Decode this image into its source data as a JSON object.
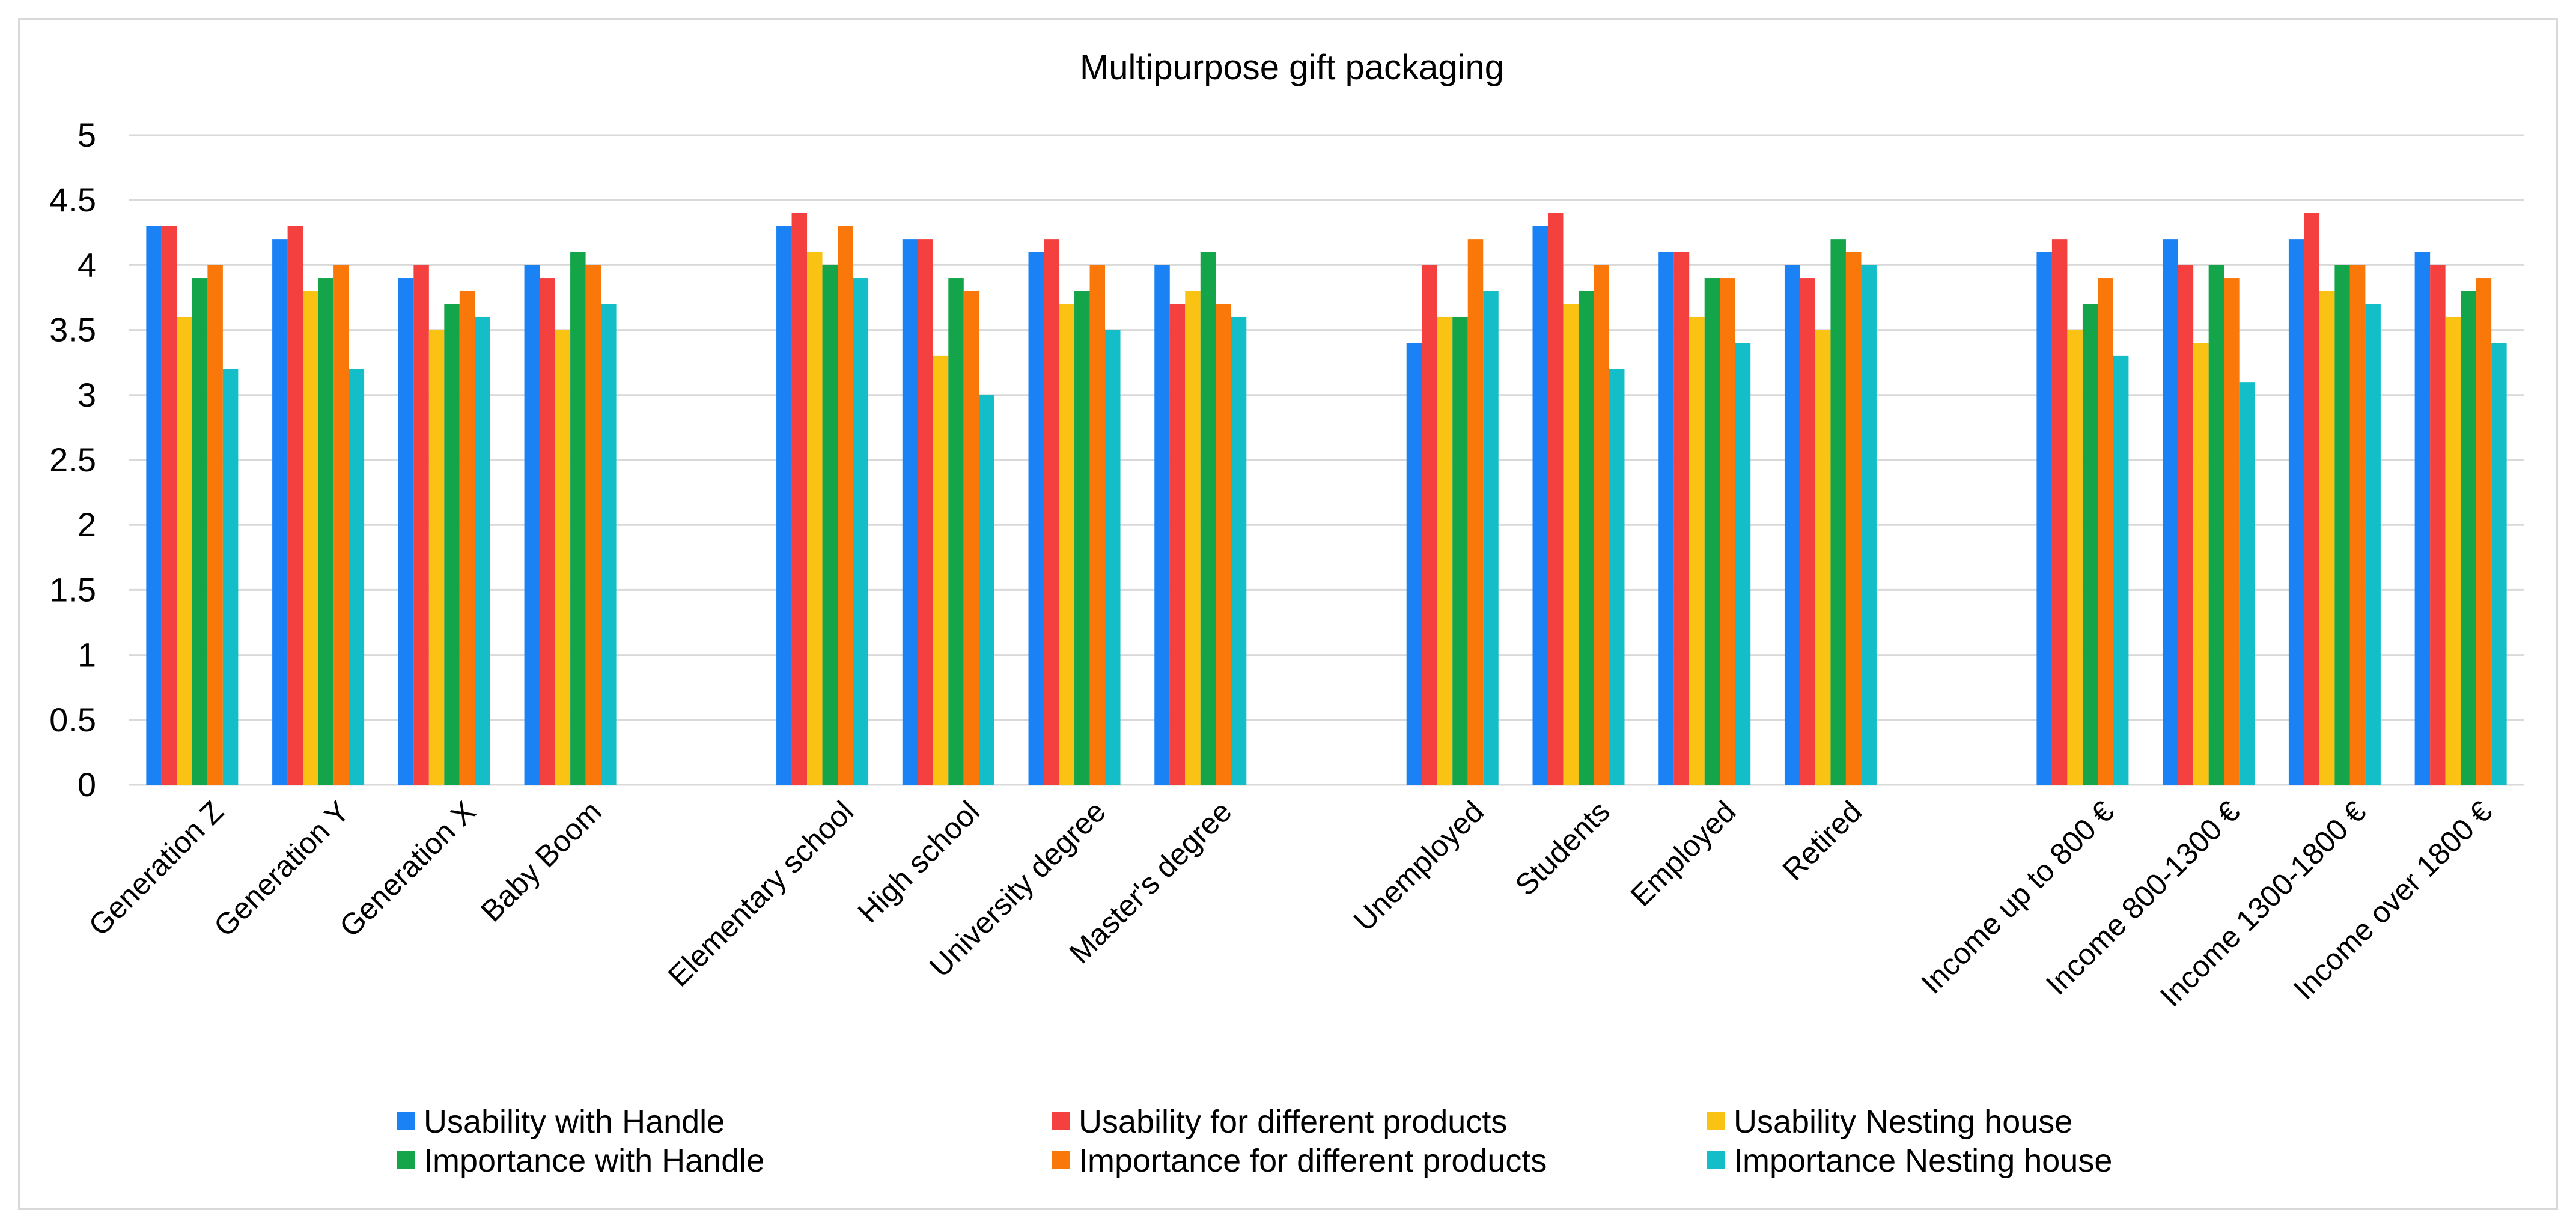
{
  "chart_data": {
    "type": "bar",
    "title": "Multipurpose gift packaging",
    "xlabel": "",
    "ylabel": "",
    "ylim": [
      0,
      5
    ],
    "yticks": [
      "0",
      "0.5",
      "1",
      "1.5",
      "2",
      "2.5",
      "3",
      "3.5",
      "4",
      "4.5",
      "5"
    ],
    "grid": true,
    "legend_position": "bottom",
    "categories": [
      "Generation Z",
      "Generation Y",
      "Generation X",
      "Baby Boom",
      "",
      "Elementary school",
      "High school",
      "University degree",
      "Master's degree",
      "",
      "Unemployed",
      "Students",
      "Employed",
      "Retired",
      "",
      "Income up to 800 €",
      "Income 800-1300 €",
      "Income 1300-1800 €",
      "Income over 1800 €"
    ],
    "series": [
      {
        "name": "Usability with Handle",
        "color": "#1a82f5",
        "values": [
          4.3,
          4.2,
          3.9,
          4.0,
          null,
          4.3,
          4.2,
          4.1,
          4.0,
          null,
          3.4,
          4.3,
          4.1,
          4.0,
          null,
          4.1,
          4.2,
          4.2,
          4.1
        ]
      },
      {
        "name": "Usability for different products",
        "color": "#f54040",
        "values": [
          4.3,
          4.3,
          4.0,
          3.9,
          null,
          4.4,
          4.2,
          4.2,
          3.7,
          null,
          4.0,
          4.4,
          4.1,
          3.9,
          null,
          4.2,
          4.0,
          4.4,
          4.0
        ]
      },
      {
        "name": "Usability Nesting house",
        "color": "#fac314",
        "values": [
          3.6,
          3.8,
          3.5,
          3.5,
          null,
          4.1,
          3.3,
          3.7,
          3.8,
          null,
          3.6,
          3.7,
          3.6,
          3.5,
          null,
          3.5,
          3.4,
          3.8,
          3.6
        ]
      },
      {
        "name": "Importance with Handle",
        "color": "#14a54b",
        "values": [
          3.9,
          3.9,
          3.7,
          4.1,
          null,
          4.0,
          3.9,
          3.8,
          4.1,
          null,
          3.6,
          3.8,
          3.9,
          4.2,
          null,
          3.7,
          4.0,
          4.0,
          3.8
        ]
      },
      {
        "name": "Importance for different products",
        "color": "#fa780a",
        "values": [
          4.0,
          4.0,
          3.8,
          4.0,
          null,
          4.3,
          3.8,
          4.0,
          3.7,
          null,
          4.2,
          4.0,
          3.9,
          4.1,
          null,
          3.9,
          3.9,
          4.0,
          3.9
        ]
      },
      {
        "name": "Importance Nesting house",
        "color": "#14bec8",
        "values": [
          3.2,
          3.2,
          3.6,
          3.7,
          null,
          3.9,
          3.0,
          3.5,
          3.6,
          null,
          3.8,
          3.2,
          3.4,
          4.0,
          null,
          3.3,
          3.1,
          3.7,
          3.4
        ]
      }
    ]
  }
}
